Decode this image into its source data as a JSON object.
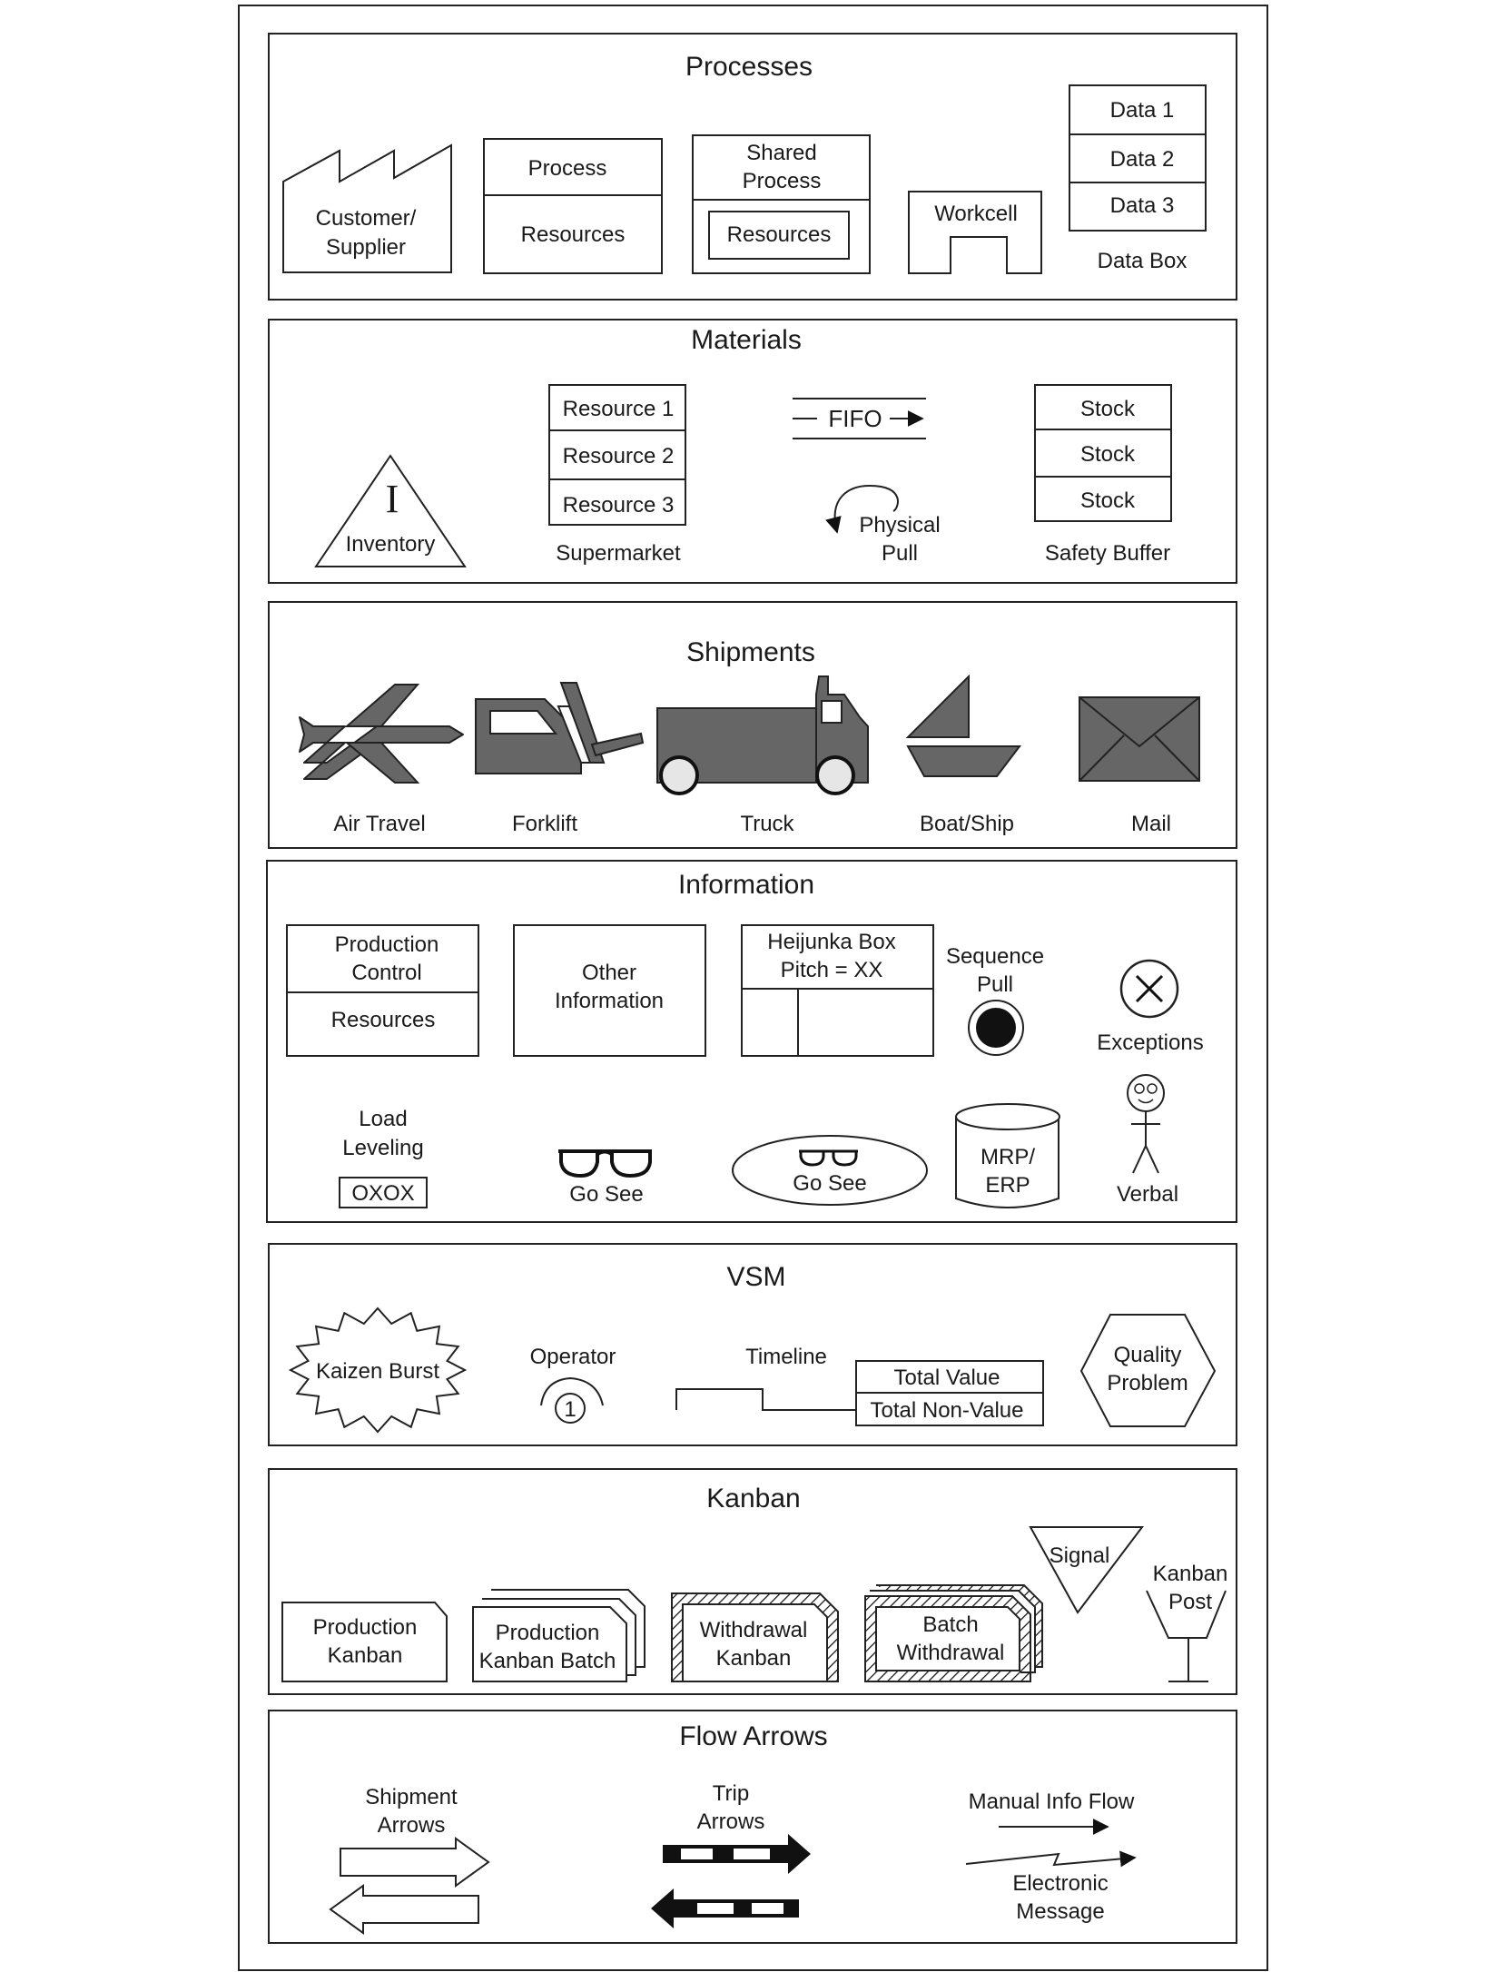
{
  "sections": {
    "processes": {
      "title": "Processes",
      "customer_supplier": [
        "Customer/",
        "Supplier"
      ],
      "process_box": {
        "top": "Process",
        "bottom": "Resources"
      },
      "shared_process": {
        "top": [
          "Shared",
          "Process"
        ],
        "bottom": "Resources"
      },
      "workcell": "Workcell",
      "data_box": {
        "rows": [
          "Data 1",
          "Data 2",
          "Data 3"
        ],
        "caption": "Data Box"
      }
    },
    "materials": {
      "title": "Materials",
      "inventory": {
        "symbol": "I",
        "label": "Inventory"
      },
      "supermarket": {
        "rows": [
          "Resource 1",
          "Resource 2",
          "Resource 3"
        ],
        "caption": "Supermarket"
      },
      "fifo": "FIFO",
      "physical_pull": [
        "Physical",
        "Pull"
      ],
      "safety_buffer": {
        "rows": [
          "Stock",
          "Stock",
          "Stock"
        ],
        "caption": "Safety Buffer"
      }
    },
    "shipments": {
      "title": "Shipments",
      "items": [
        "Air Travel",
        "Forklift",
        "Truck",
        "Boat/Ship",
        "Mail"
      ]
    },
    "information": {
      "title": "Information",
      "production_control": {
        "top": [
          "Production",
          "Control"
        ],
        "bottom": "Resources"
      },
      "other_information": [
        "Other",
        "Information"
      ],
      "heijunka": [
        "Heijunka Box",
        "Pitch = XX"
      ],
      "sequence_pull": [
        "Sequence",
        "Pull"
      ],
      "exceptions": "Exceptions",
      "load_leveling": {
        "label": [
          "Load",
          "Leveling"
        ],
        "box": "OXOX"
      },
      "go_see": "Go See",
      "go_see_oval": "Go See",
      "mrp_erp": [
        "MRP/",
        "ERP"
      ],
      "verbal": "Verbal"
    },
    "vsm": {
      "title": "VSM",
      "kaizen": "Kaizen Burst",
      "operator": {
        "label": "Operator",
        "number": "1"
      },
      "timeline": {
        "label": "Timeline",
        "rows": [
          "Total Value",
          "Total Non-Value"
        ]
      },
      "quality": [
        "Quality",
        "Problem"
      ]
    },
    "kanban": {
      "title": "Kanban",
      "production_kanban": [
        "Production",
        "Kanban"
      ],
      "production_kanban_batch": [
        "Production",
        "Kanban Batch"
      ],
      "withdrawal_kanban": [
        "Withdrawal",
        "Kanban"
      ],
      "batch_withdrawal": [
        "Batch",
        "Withdrawal"
      ],
      "signal": "Signal",
      "kanban_post": [
        "Kanban",
        "Post"
      ]
    },
    "flow_arrows": {
      "title": "Flow Arrows",
      "shipment_arrows": [
        "Shipment",
        "Arrows"
      ],
      "trip_arrows": [
        "Trip",
        "Arrows"
      ],
      "manual_info_flow": "Manual Info Flow",
      "electronic_message": [
        "Electronic",
        "Message"
      ]
    }
  }
}
